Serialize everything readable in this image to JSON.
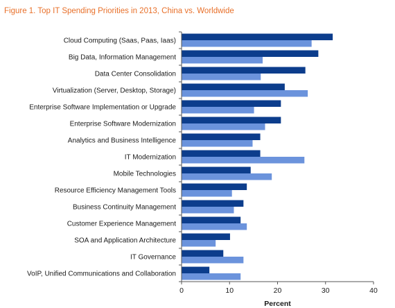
{
  "chart_data": {
    "type": "bar",
    "orientation": "horizontal",
    "title": "Figure 1. Top IT Spending Priorities in 2013, China vs. Worldwide",
    "xlabel": "Percent",
    "ylabel": "",
    "xlim": [
      0,
      40
    ],
    "xticks": [
      0,
      10,
      20,
      30,
      40
    ],
    "grid": false,
    "legend": "none",
    "categories": [
      "Cloud Computing (Saas, Paas, Iaas)",
      "Big Data, Information Management",
      "Data Center Consolidation",
      "Virtualization (Server, Desktop, Storage)",
      "Enterprise Software Implementation or Upgrade",
      "Enterprise Software Modernization",
      "Analytics and Business Intelligence",
      "IT Modernization",
      "Mobile Technologies",
      "Resource Efficiency Management Tools",
      "Business Continuity Management",
      "Customer Experience Management",
      "SOA and Application Architecture",
      "IT Governance",
      "VoIP, Unified Communications and Collaboration"
    ],
    "series": [
      {
        "color": "#0c3d8c",
        "values": [
          31.5,
          28.5,
          25.8,
          21.5,
          20.7,
          20.7,
          16.4,
          16.4,
          14.4,
          13.6,
          12.9,
          12.3,
          10.1,
          8.7,
          5.8
        ]
      },
      {
        "color": "#6b93dc",
        "values": [
          27.1,
          16.9,
          16.5,
          26.3,
          15.1,
          17.4,
          14.8,
          25.6,
          18.8,
          10.5,
          10.9,
          13.6,
          7.1,
          12.9,
          12.3
        ]
      }
    ]
  }
}
